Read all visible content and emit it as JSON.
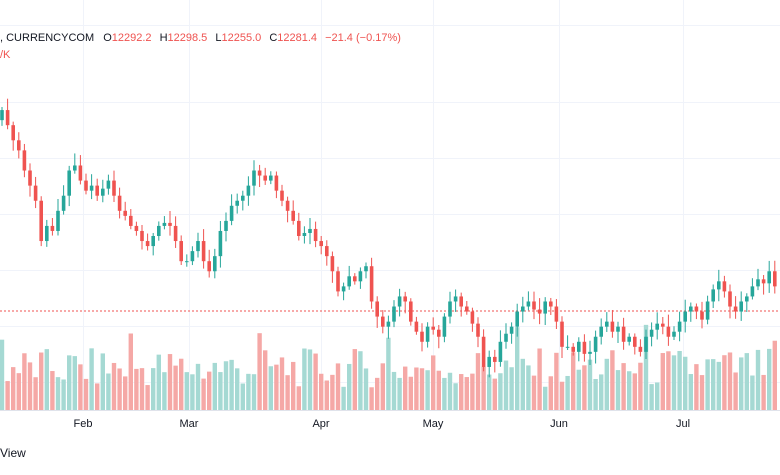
{
  "legend": {
    "symbol_suffix": ", CURRENCYCOM",
    "open_label": "O",
    "open": "12292.2",
    "high_label": "H",
    "high": "12298.5",
    "low_label": "L",
    "low": "12255.0",
    "close_label": "C",
    "close": "12281.4",
    "change": "−21.4 (−0.17%)",
    "volume_tag": "/K"
  },
  "footer_text": "View",
  "colors": {
    "up": "#26a69a",
    "down": "#ef5350",
    "up_vol": "#a5d9d3",
    "down_vol": "#f5a8a6"
  },
  "chart_data": {
    "type": "candlestick",
    "x_tick_labels": [
      "Feb",
      "Mar",
      "Apr",
      "May",
      "Jun",
      "Jul"
    ],
    "grid": true,
    "close_series": [
      12430,
      12415,
      12400,
      12390,
      12370,
      12355,
      12340,
      12300,
      12315,
      12310,
      12330,
      12345,
      12370,
      12375,
      12360,
      12350,
      12355,
      12345,
      12352,
      12360,
      12345,
      12330,
      12325,
      12315,
      12310,
      12300,
      12295,
      12305,
      12315,
      12318,
      12315,
      12300,
      12280,
      12280,
      12290,
      12300,
      12280,
      12270,
      12285,
      12310,
      12320,
      12335,
      12340,
      12345,
      12355,
      12370,
      12365,
      12360,
      12365,
      12350,
      12340,
      12330,
      12320,
      12305,
      12308,
      12312,
      12300,
      12295,
      12285,
      12270,
      12250,
      12255,
      12265,
      12260,
      12270,
      12275,
      12240,
      12225,
      12215,
      12220,
      12235,
      12245,
      12240,
      12220,
      12210,
      12200,
      12215,
      12212,
      12205,
      12225,
      12240,
      12245,
      12235,
      12230,
      12218,
      12205,
      12175,
      12185,
      12180,
      12200,
      12208,
      12215,
      12230,
      12235,
      12240,
      12232,
      12228,
      12240,
      12235,
      12220,
      12195,
      12195,
      12190,
      12200,
      12188,
      12190,
      12205,
      12215,
      12220,
      12210,
      12215,
      12200,
      12205,
      12195,
      12190,
      12205,
      12212,
      12218,
      12215,
      12205,
      12210,
      12220,
      12230,
      12235,
      12230,
      12222,
      12240,
      12252,
      12260,
      12250,
      12235,
      12230,
      12240,
      12245,
      12255,
      12262,
      12258,
      12270,
      12255
    ]
  }
}
